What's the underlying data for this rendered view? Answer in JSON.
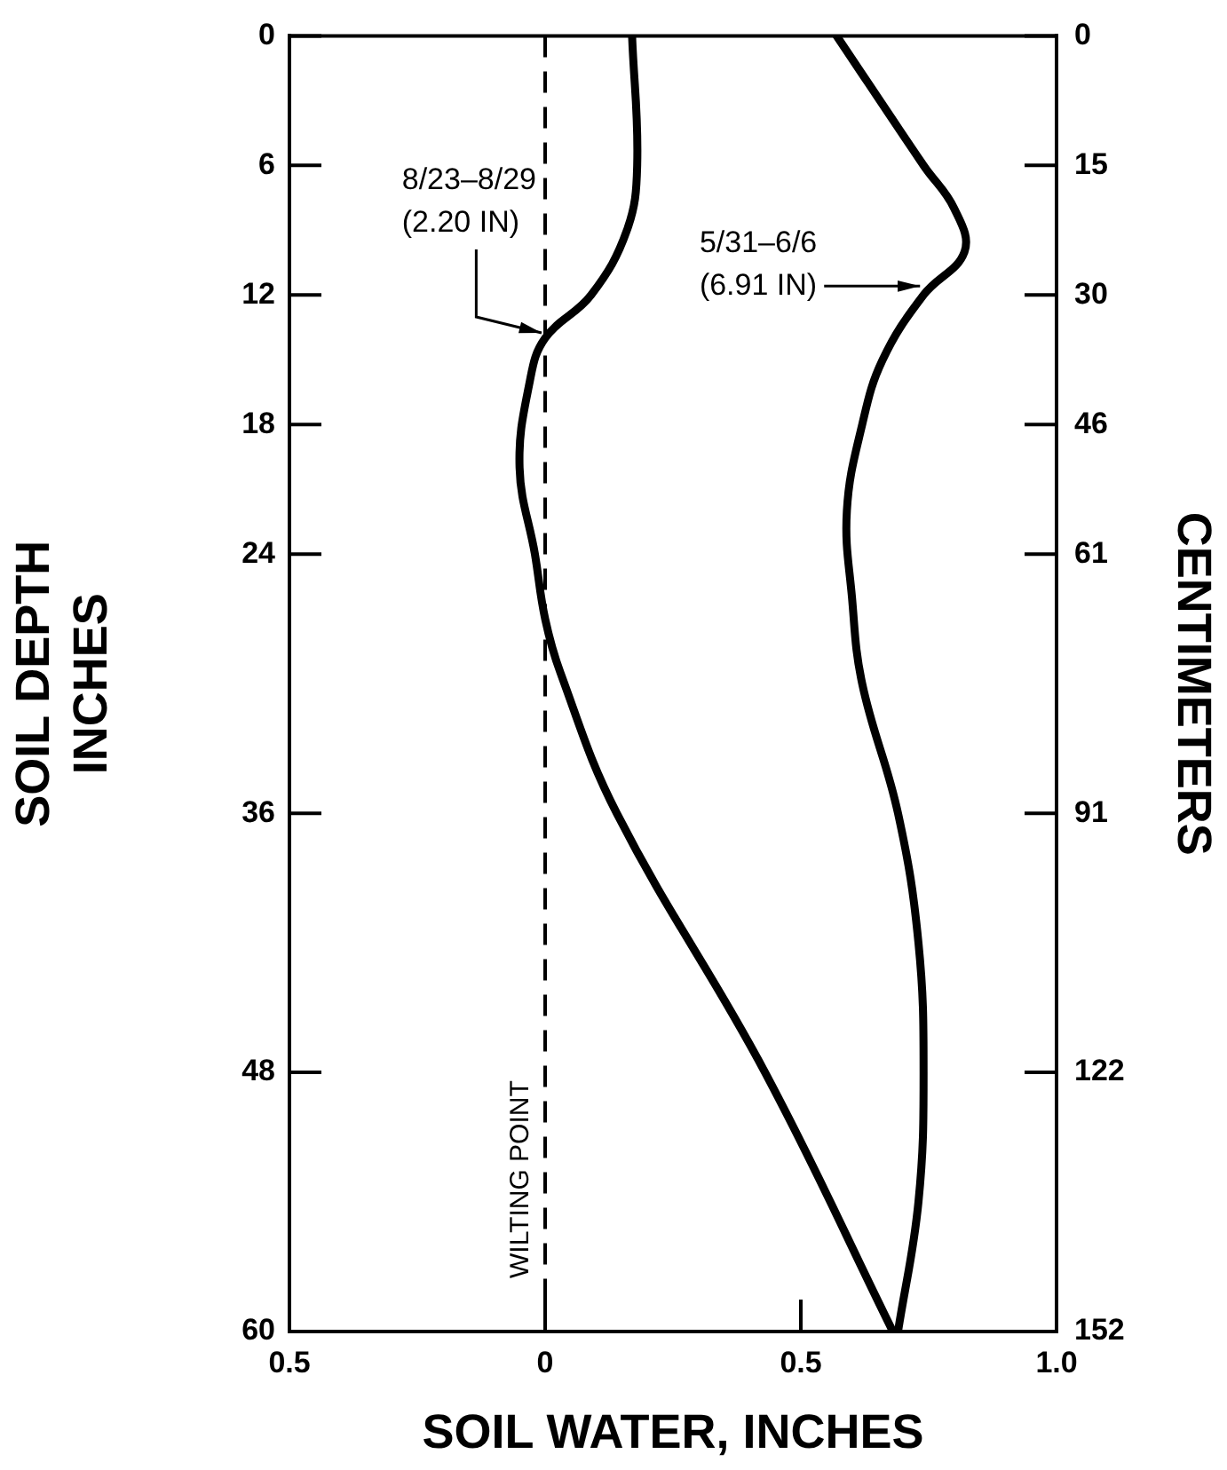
{
  "chart_data": {
    "type": "line",
    "xlabel": "SOIL WATER, INCHES",
    "ylabel": "SOIL DEPTH\nINCHES",
    "y2label": "CENTIMETERS",
    "xlim": [
      -0.5,
      1.0
    ],
    "xticks": [
      {
        "value": -0.5,
        "label": "0.5"
      },
      0,
      0.5,
      {
        "value": 1.0,
        "label": "1.0"
      }
    ],
    "ylim": [
      60,
      0
    ],
    "yticks": [
      0,
      6,
      12,
      18,
      24,
      36,
      48,
      60
    ],
    "y2lim": [
      152.4,
      0
    ],
    "y2ticks": [
      0,
      {
        "value": 15.24,
        "label": "15"
      },
      {
        "value": 30.48,
        "label": "30"
      },
      {
        "value": 45.72,
        "label": "46"
      },
      {
        "value": 60.96,
        "label": "61"
      },
      {
        "value": 91.44,
        "label": "91"
      },
      {
        "value": 121.92,
        "label": "122"
      },
      {
        "value": 152.4,
        "label": "152"
      }
    ],
    "series": [
      {
        "color": "#000000",
        "x": [
          0.17,
          0.18,
          0.16,
          0.09,
          0.0,
          -0.03,
          -0.05,
          -0.02,
          0.0,
          0.03,
          0.14,
          0.43,
          0.68
        ],
        "values": [
          0,
          6,
          9,
          12,
          14,
          16,
          20,
          24,
          27,
          29.5,
          36,
          48,
          60
        ]
      },
      {
        "color": "#000000",
        "x": [
          0.57,
          0.74,
          0.8,
          0.82,
          0.74,
          0.66,
          0.62,
          0.59,
          0.6,
          0.62,
          0.69,
          0.73,
          0.74,
          0.73,
          0.69
        ],
        "values": [
          0,
          6,
          8,
          10,
          12,
          15,
          18,
          22,
          26,
          30,
          36,
          42,
          48,
          54,
          60
        ]
      }
    ],
    "ref_lines": [
      {
        "axis": "x",
        "value": 0,
        "label": "WILTING POINT",
        "line_style": "dashed",
        "color": "#000000"
      }
    ],
    "annotations": [
      {
        "text": "8/23–8/29\n(2.20 IN)",
        "x": 0.0,
        "y": 14
      },
      {
        "text": "5/31–6/6\n(6.91 IN)",
        "x": 0.74,
        "y": 12
      }
    ],
    "grid": false,
    "legend": false,
    "marker": "none",
    "line_style": "solid"
  }
}
